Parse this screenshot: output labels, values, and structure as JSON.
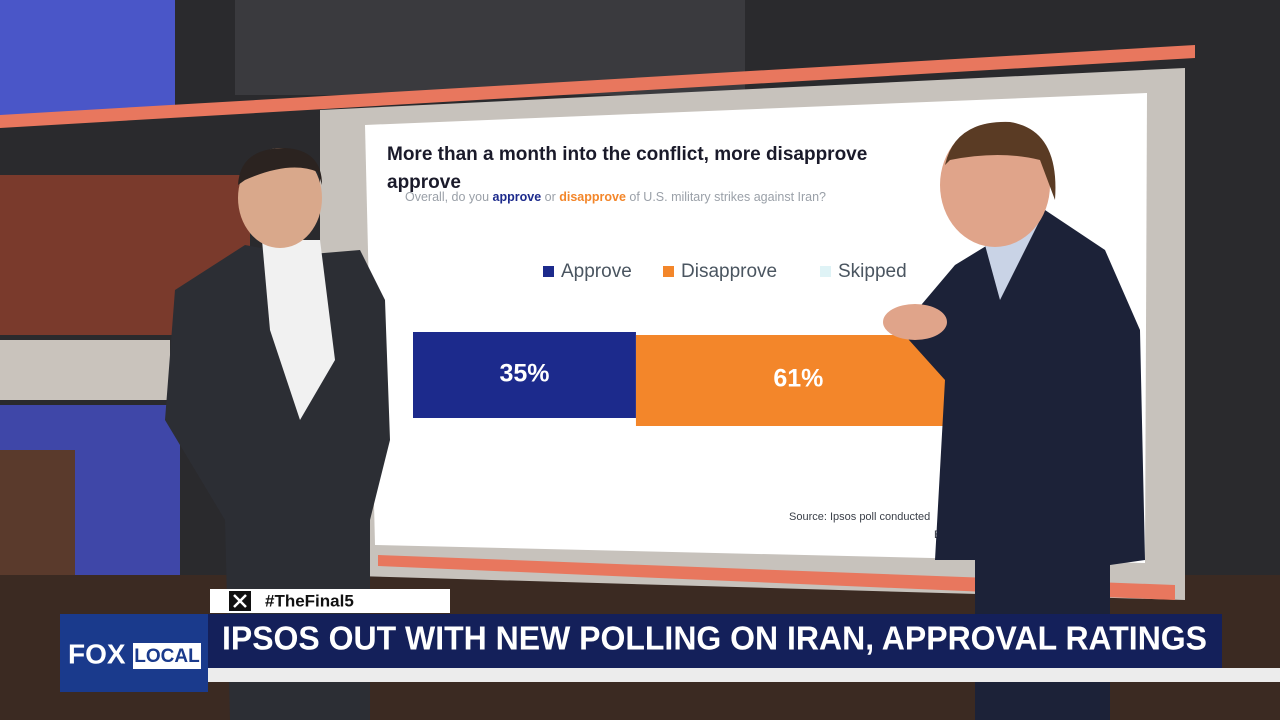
{
  "screen": {
    "title_lines": [
      "More than a month into the conflict, more disapprove",
      "approve"
    ],
    "question": [
      "Overall, do you ",
      "approve",
      " or ",
      "disapprove",
      " of U.S. military strikes against Iran?"
    ],
    "legend": [
      {
        "name": "Approve",
        "color": "#1c2a8c"
      },
      {
        "name": "Disapprove",
        "color": "#f3862a"
      },
      {
        "name": "Skipped",
        "color": "#dff3f6"
      }
    ],
    "bar": {
      "values": [
        35,
        61
      ],
      "value_labels": [
        "35%",
        "61%"
      ]
    },
    "source_lines": [
      "Source: Ipsos poll conducted",
      "Base"
    ]
  },
  "lower_third": {
    "hashtag": "#TheFinal5",
    "logo": [
      "FOX",
      "LOCAL"
    ],
    "headline": "IPSOS OUT WITH NEW POLLING ON IRAN, APPROVAL RATINGS"
  }
}
